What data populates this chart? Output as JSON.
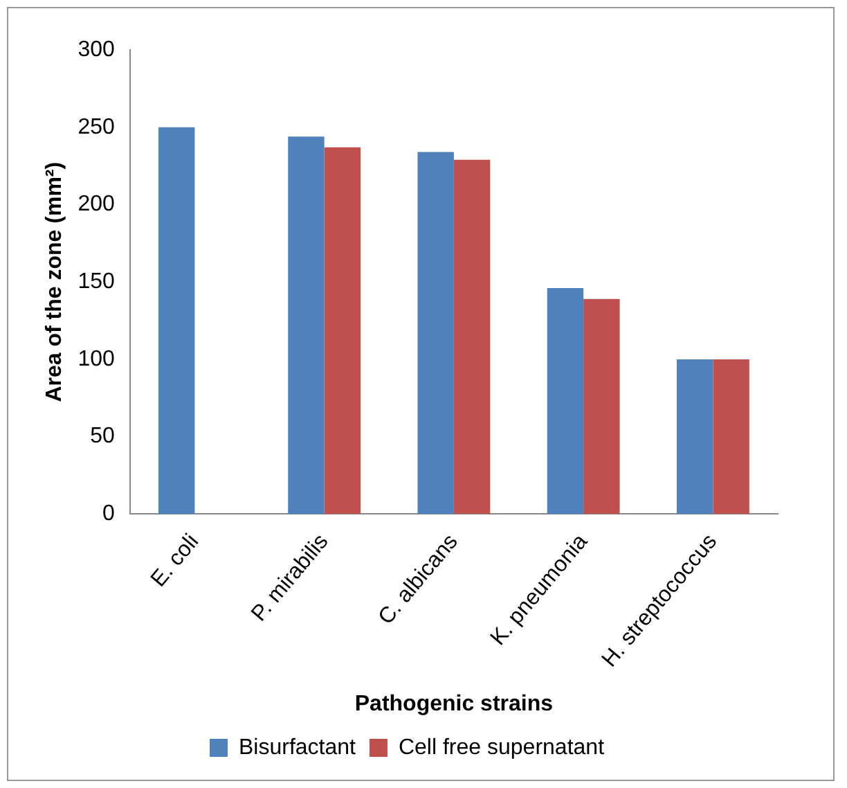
{
  "chart_data": {
    "type": "bar",
    "xlabel": "Pathogenic strains",
    "ylabel": "Area of the zone (mm²)",
    "categories": [
      "E. coli",
      "P. mirabilis",
      "C. albicans",
      "K. pneumonia",
      "H. streptococcus"
    ],
    "series": [
      {
        "name": "Bisurfactant",
        "color": "#4f81bd",
        "values": [
          250,
          244,
          234,
          146,
          100
        ]
      },
      {
        "name": "Cell free supernatant",
        "color": "#c0504d",
        "values": [
          null,
          237,
          229,
          139,
          100
        ]
      }
    ],
    "ylim": [
      0,
      300
    ],
    "yticks": [
      0,
      50,
      100,
      150,
      200,
      250,
      300
    ],
    "grid": false,
    "legend": "bottom"
  }
}
